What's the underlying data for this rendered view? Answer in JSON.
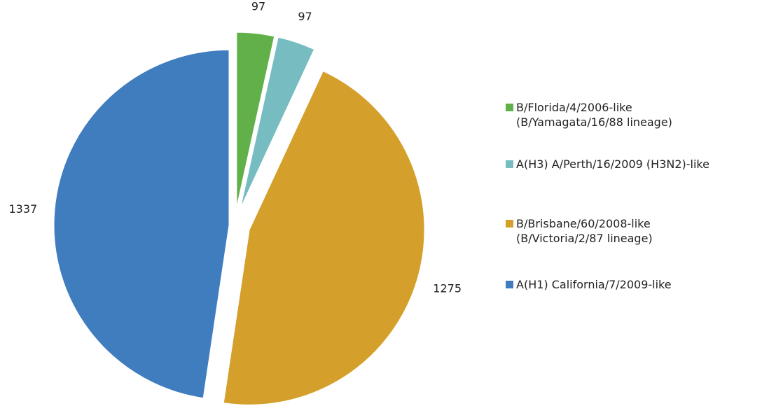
{
  "chart_data": {
    "type": "pie",
    "series": [
      {
        "name": "B/Florida/4/2006-like\n(B/Yamagata/16/88 lineage)",
        "color": "#62b04a",
        "values": [
          97
        ]
      },
      {
        "name": "A(H3) A/Perth/16/2009 (H3N2)-like",
        "color": "#77bcc0",
        "values": [
          97
        ]
      },
      {
        "name": "B/Brisbane/60/2008-like\n(B/Victoria/2/87 lineage)",
        "color": "#d4a02b",
        "values": [
          1275
        ]
      },
      {
        "name": "A(H1) California/7/2009-like",
        "color": "#3f7dbe",
        "values": [
          1337
        ]
      }
    ],
    "legend": "right"
  }
}
